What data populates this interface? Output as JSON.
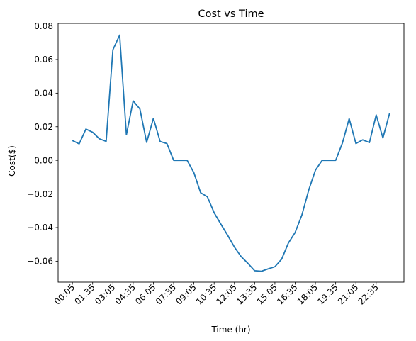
{
  "chart_data": {
    "type": "line",
    "title": "Cost vs Time",
    "xlabel": "Time (hr)",
    "ylabel": "Cost($)",
    "ylim": [
      -0.0725,
      0.0815
    ],
    "grid": false,
    "x_tick_labels": [
      "00:05",
      "01:35",
      "03:05",
      "04:35",
      "06:05",
      "07:35",
      "09:05",
      "10:35",
      "12:05",
      "13:35",
      "15:05",
      "16:35",
      "18:05",
      "19:35",
      "21:05",
      "22:35"
    ],
    "y_ticks": [
      -0.06,
      -0.04,
      -0.02,
      0.0,
      0.02,
      0.04,
      0.06,
      0.08
    ],
    "y_tick_labels": [
      "−0.06",
      "−0.04",
      "−0.02",
      "0.00",
      "0.02",
      "0.04",
      "0.06",
      "0.08"
    ],
    "series": [
      {
        "color": "#1f77b4",
        "x": [
          "00:05",
          "00:35",
          "01:05",
          "01:35",
          "02:05",
          "02:35",
          "03:05",
          "03:35",
          "04:05",
          "04:35",
          "05:05",
          "05:35",
          "06:05",
          "06:35",
          "07:05",
          "07:35",
          "08:05",
          "08:35",
          "09:05",
          "09:35",
          "10:05",
          "10:35",
          "11:05",
          "11:35",
          "12:05",
          "12:35",
          "13:05",
          "13:35",
          "14:05",
          "14:35",
          "15:05",
          "15:35",
          "16:05",
          "16:35",
          "17:05",
          "17:35",
          "18:05",
          "18:35",
          "19:05",
          "19:35",
          "20:05",
          "20:35",
          "21:05",
          "21:35",
          "22:05",
          "22:35",
          "23:05",
          "23:35"
        ],
        "values": [
          0.0118,
          0.0098,
          0.0186,
          0.0167,
          0.0128,
          0.0113,
          0.0658,
          0.0745,
          0.0152,
          0.0354,
          0.0306,
          0.0107,
          0.025,
          0.0112,
          0.01,
          0.0,
          0.0,
          0.0,
          -0.0074,
          -0.0193,
          -0.0217,
          -0.0312,
          -0.038,
          -0.0446,
          -0.0516,
          -0.0573,
          -0.0613,
          -0.0657,
          -0.066,
          -0.0646,
          -0.0633,
          -0.0588,
          -0.0492,
          -0.0429,
          -0.0325,
          -0.0178,
          -0.0059,
          0.0,
          0.0,
          0.0,
          0.0103,
          0.0248,
          0.01,
          0.0122,
          0.0106,
          0.027,
          0.0133,
          0.0282
        ]
      }
    ]
  }
}
